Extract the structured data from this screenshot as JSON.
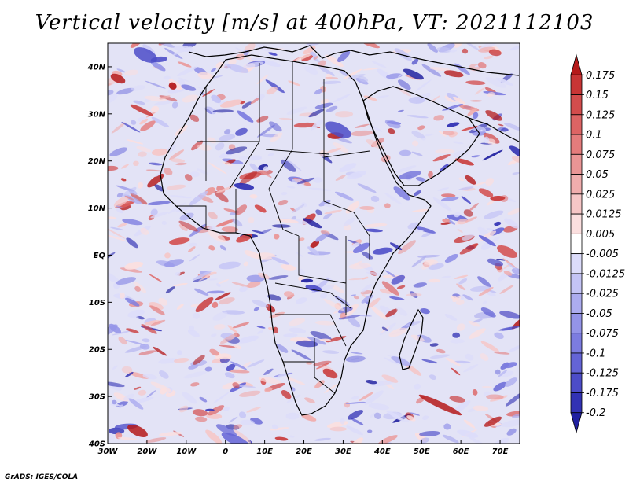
{
  "title": "Vertical velocity [m/s] at 400hPa, VT: 2021112103",
  "credit": "GrADS: IGES/COLA",
  "map": {
    "lon_range": [
      -30,
      75
    ],
    "lat_range": [
      -40,
      45
    ],
    "lon_ticks": [
      "30W",
      "20W",
      "10W",
      "0",
      "10E",
      "20E",
      "30E",
      "40E",
      "50E",
      "60E",
      "70E"
    ],
    "lat_ticks": [
      "40N",
      "30N",
      "20N",
      "10N",
      "EQ",
      "10S",
      "20S",
      "30S",
      "40S"
    ]
  },
  "colorbar": {
    "labels": [
      "0.175",
      "0.15",
      "0.125",
      "0.1",
      "0.075",
      "0.05",
      "0.025",
      "0.0125",
      "0.005",
      "-0.005",
      "-0.0125",
      "-0.025",
      "-0.05",
      "-0.075",
      "-0.1",
      "-0.125",
      "-0.175",
      "-0.2"
    ],
    "colors": [
      "#b51a1a",
      "#c83535",
      "#d34c4c",
      "#dd6464",
      "#e47c7c",
      "#ea9595",
      "#f0adad",
      "#f6c6c6",
      "#fbdfdf",
      "#ffffff",
      "#dcdcfa",
      "#c4c4f5",
      "#acacef",
      "#9494e8",
      "#7c7ce0",
      "#6464d6",
      "#4c4cc8",
      "#3232b4",
      "#2020a0"
    ]
  }
}
